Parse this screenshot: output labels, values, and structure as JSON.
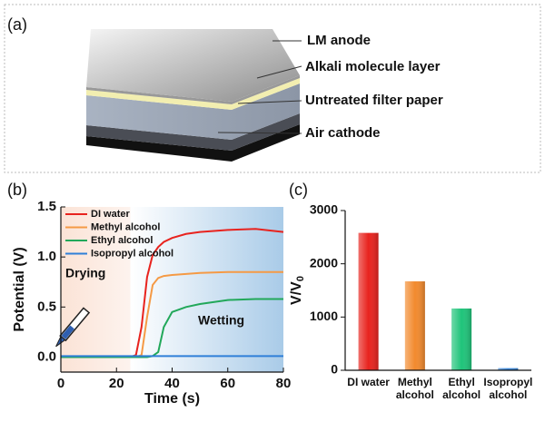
{
  "panels": [
    "(a)",
    "(b)",
    "(c)"
  ],
  "diagram": {
    "labels": [
      "LM anode",
      "Alkali molecule layer",
      "Untreated filter paper",
      "Air cathode"
    ]
  },
  "chart_data": [
    {
      "type": "line",
      "xlabel": "Time (s)",
      "ylabel": "Potential (V)",
      "annotations": [
        "Drying",
        "Wetting"
      ],
      "x": [
        0,
        10,
        20,
        25,
        27,
        29,
        31,
        33,
        35,
        37,
        40,
        45,
        50,
        60,
        70,
        80
      ],
      "series": [
        {
          "name": "DI water",
          "color": "#e8231e",
          "values": [
            0,
            0,
            0,
            0,
            0.02,
            0.3,
            0.8,
            1.02,
            1.1,
            1.15,
            1.19,
            1.23,
            1.25,
            1.27,
            1.28,
            1.25
          ]
        },
        {
          "name": "Methyl alcohol",
          "color": "#f59a45",
          "values": [
            0,
            0,
            0,
            0,
            0,
            0.02,
            0.4,
            0.72,
            0.79,
            0.81,
            0.82,
            0.83,
            0.84,
            0.85,
            0.85,
            0.85
          ]
        },
        {
          "name": "Ethyl alcohol",
          "color": "#22a85a",
          "values": [
            0,
            0,
            0,
            0,
            0,
            0,
            0,
            0.01,
            0.05,
            0.3,
            0.45,
            0.5,
            0.53,
            0.57,
            0.58,
            0.58
          ]
        },
        {
          "name": "Isopropyl alcohol",
          "color": "#2f7fd8",
          "values": [
            0.01,
            0.01,
            0.01,
            0.01,
            0.01,
            0.01,
            0.01,
            0.01,
            0.01,
            0.01,
            0.01,
            0.01,
            0.01,
            0.01,
            0.01,
            0.01
          ]
        }
      ],
      "xlim": [
        0,
        80
      ],
      "ylim": [
        -0.15,
        1.5
      ],
      "xticks": [
        0,
        20,
        40,
        60,
        80
      ],
      "yticks": [
        {
          "value": 0,
          "label": "0.0"
        },
        0.5,
        {
          "value": 1,
          "label": "1.0"
        },
        1.5
      ],
      "legend": "upper left"
    },
    {
      "type": "bar",
      "ylabel": "V/V",
      "ylabel_sub": "0",
      "categories": [
        "DI water",
        "Methyl\nalcohol",
        "Ethyl\nalcohol",
        "Isopropyl\nalcohol"
      ],
      "values": [
        2580,
        1670,
        1160,
        40
      ],
      "colors": [
        "#e8231e",
        "#f28a2e",
        "#1fc47a",
        "#3a86d8"
      ],
      "ylim": [
        0,
        3000
      ],
      "yticks": [
        0,
        1000,
        2000,
        3000
      ]
    }
  ]
}
